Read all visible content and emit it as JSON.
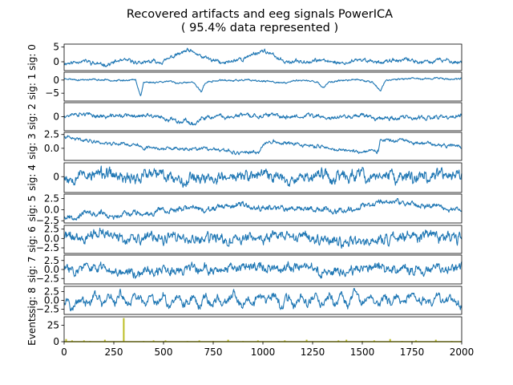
{
  "chart_data": {
    "type": "line",
    "title": "Recovered artifacts and eeg signals PowerICA",
    "subtitle": "( 95.4% data represented )",
    "xlim": [
      0,
      2000
    ],
    "x_ticks": [
      "0",
      "250",
      "500",
      "750",
      "1000",
      "1250",
      "1500",
      "1750",
      "2000"
    ],
    "x_tick_values": [
      0,
      250,
      500,
      750,
      1000,
      1250,
      1500,
      1750,
      2000
    ],
    "line_color": "#1f77b4",
    "events_color": "#bcbd22",
    "grid": false,
    "panels": [
      {
        "ylabel": "sig: 0",
        "ylim": [
          -3,
          6
        ],
        "ticks": [
          "0",
          "5"
        ],
        "tick_values": [
          0,
          5
        ],
        "points": [
          [
            0,
            -0.5
          ],
          [
            100,
            0.5
          ],
          [
            200,
            -1
          ],
          [
            300,
            0.5
          ],
          [
            400,
            -0.5
          ],
          [
            500,
            0.5
          ],
          [
            560,
            2
          ],
          [
            620,
            3.5
          ],
          [
            680,
            2
          ],
          [
            740,
            0.5
          ],
          [
            800,
            -0.5
          ],
          [
            900,
            1
          ],
          [
            950,
            2.5
          ],
          [
            1000,
            4
          ],
          [
            1050,
            2
          ],
          [
            1100,
            0.5
          ],
          [
            1200,
            0
          ],
          [
            1300,
            0.5
          ],
          [
            1400,
            -0.5
          ],
          [
            1500,
            0.5
          ],
          [
            1600,
            0
          ],
          [
            1700,
            0.5
          ],
          [
            1800,
            0
          ],
          [
            1900,
            0.5
          ],
          [
            2000,
            0
          ]
        ],
        "noise": 1.0,
        "seed": 11
      },
      {
        "ylabel": "sig: 1",
        "ylim": [
          -8,
          3
        ],
        "ticks": [
          "0",
          "−5"
        ],
        "tick_values": [
          0,
          -5
        ],
        "points": [
          [
            0,
            0.5
          ],
          [
            100,
            0
          ],
          [
            200,
            0
          ],
          [
            300,
            0
          ],
          [
            360,
            0
          ],
          [
            385,
            -6
          ],
          [
            400,
            -1
          ],
          [
            500,
            -0.5
          ],
          [
            600,
            -1
          ],
          [
            650,
            -1
          ],
          [
            690,
            -4.5
          ],
          [
            710,
            -1
          ],
          [
            800,
            0
          ],
          [
            900,
            0
          ],
          [
            1000,
            -0.5
          ],
          [
            1100,
            -1
          ],
          [
            1200,
            0
          ],
          [
            1280,
            -1
          ],
          [
            1300,
            -3
          ],
          [
            1330,
            -1
          ],
          [
            1400,
            0
          ],
          [
            1500,
            0
          ],
          [
            1550,
            -0.5
          ],
          [
            1590,
            -4
          ],
          [
            1620,
            0
          ],
          [
            1700,
            0.5
          ],
          [
            1800,
            0.5
          ],
          [
            1900,
            0.5
          ],
          [
            2000,
            0.5
          ]
        ],
        "noise": 0.5,
        "seed": 23
      },
      {
        "ylabel": "sig: 2",
        "ylim": [
          -4,
          4
        ],
        "ticks": [
          "0"
        ],
        "tick_values": [
          0
        ],
        "points": [
          [
            0,
            0.5
          ],
          [
            100,
            0.5
          ],
          [
            200,
            0
          ],
          [
            300,
            0.5
          ],
          [
            400,
            0
          ],
          [
            500,
            -0.5
          ],
          [
            600,
            -1
          ],
          [
            650,
            -2
          ],
          [
            700,
            -1
          ],
          [
            800,
            0
          ],
          [
            900,
            0.5
          ],
          [
            1000,
            0
          ],
          [
            1100,
            0
          ],
          [
            1200,
            0.5
          ],
          [
            1300,
            0
          ],
          [
            1400,
            0
          ],
          [
            1500,
            0.5
          ],
          [
            1600,
            0
          ],
          [
            1700,
            0
          ],
          [
            1800,
            -0.5
          ],
          [
            1900,
            0
          ],
          [
            2000,
            0
          ]
        ],
        "noise": 0.9,
        "seed": 37
      },
      {
        "ylabel": "sig: 3",
        "ylim": [
          -2.2,
          2.9
        ],
        "ticks": [
          "2.5",
          "0.0"
        ],
        "tick_values": [
          2.5,
          0
        ],
        "points": [
          [
            0,
            2
          ],
          [
            100,
            1.5
          ],
          [
            200,
            1
          ],
          [
            300,
            0.8
          ],
          [
            400,
            0.2
          ],
          [
            500,
            0
          ],
          [
            600,
            -0.2
          ],
          [
            700,
            0
          ],
          [
            800,
            -0.5
          ],
          [
            900,
            -0.7
          ],
          [
            980,
            -1
          ],
          [
            1000,
            0.8
          ],
          [
            1050,
            1.5
          ],
          [
            1100,
            1
          ],
          [
            1200,
            0.5
          ],
          [
            1300,
            0.2
          ],
          [
            1400,
            -0.3
          ],
          [
            1500,
            -0.6
          ],
          [
            1580,
            -0.6
          ],
          [
            1590,
            1.5
          ],
          [
            1700,
            1.3
          ],
          [
            1800,
            1
          ],
          [
            1900,
            0.6
          ],
          [
            2000,
            0.3
          ]
        ],
        "noise": 0.45,
        "seed": 41
      },
      {
        "ylabel": "sig: 4",
        "ylim": [
          -4,
          3.5
        ],
        "ticks": [
          "0"
        ],
        "tick_values": [
          0
        ],
        "points": [
          [
            0,
            0.5
          ],
          [
            200,
            0.5
          ],
          [
            400,
            0
          ],
          [
            600,
            0
          ],
          [
            800,
            0
          ],
          [
            1000,
            0
          ],
          [
            1200,
            0
          ],
          [
            1400,
            0
          ],
          [
            1600,
            0
          ],
          [
            1800,
            0
          ],
          [
            2000,
            0
          ]
        ],
        "noise": 2.2,
        "seed": 53
      },
      {
        "ylabel": "sig: 5",
        "ylim": [
          -3,
          3.5
        ],
        "ticks": [
          "2.5",
          "0.0",
          "−2.5"
        ],
        "tick_values": [
          2.5,
          0,
          -2.5
        ],
        "points": [
          [
            0,
            -1.5
          ],
          [
            100,
            -1
          ],
          [
            200,
            -1.2
          ],
          [
            280,
            -1.8
          ],
          [
            300,
            -0.8
          ],
          [
            400,
            -0.5
          ],
          [
            500,
            0
          ],
          [
            600,
            0.3
          ],
          [
            700,
            -0.2
          ],
          [
            800,
            0.3
          ],
          [
            900,
            0.8
          ],
          [
            1000,
            1
          ],
          [
            1100,
            0.3
          ],
          [
            1200,
            0.5
          ],
          [
            1300,
            0
          ],
          [
            1400,
            0
          ],
          [
            1500,
            0.8
          ],
          [
            1550,
            1
          ],
          [
            1600,
            2
          ],
          [
            1700,
            1.5
          ],
          [
            1800,
            1
          ],
          [
            1900,
            0.5
          ],
          [
            2000,
            0
          ]
        ],
        "noise": 0.9,
        "seed": 67
      },
      {
        "ylabel": "sig: 6",
        "ylim": [
          -4,
          3.5
        ],
        "ticks": [
          "2.5",
          "0.0",
          "−2.5"
        ],
        "tick_values": [
          2.5,
          0,
          -2.5
        ],
        "points": [
          [
            0,
            0.5
          ],
          [
            200,
            1
          ],
          [
            400,
            0
          ],
          [
            600,
            0
          ],
          [
            800,
            0
          ],
          [
            1000,
            0
          ],
          [
            1200,
            0
          ],
          [
            1400,
            0
          ],
          [
            1600,
            0.5
          ],
          [
            1800,
            0
          ],
          [
            2000,
            0
          ]
        ],
        "noise": 2.0,
        "seed": 71
      },
      {
        "ylabel": "sig: 7",
        "ylim": [
          -4,
          4
        ],
        "ticks": [
          "2.5",
          "0.0",
          "−2.5"
        ],
        "tick_values": [
          2.5,
          0,
          -2.5
        ],
        "points": [
          [
            0,
            0
          ],
          [
            200,
            0.5
          ],
          [
            400,
            -0.5
          ],
          [
            600,
            0
          ],
          [
            800,
            0
          ],
          [
            1000,
            0.5
          ],
          [
            1200,
            0
          ],
          [
            1400,
            -0.5
          ],
          [
            1600,
            0.8
          ],
          [
            1800,
            0
          ],
          [
            2000,
            0.5
          ]
        ],
        "noise": 1.9,
        "seed": 83
      },
      {
        "ylabel": "sig: 8",
        "ylim": [
          -4,
          4
        ],
        "ticks": [
          "2.5",
          "0.0",
          "−2.5"
        ],
        "tick_values": [
          2.5,
          0,
          -2.5
        ],
        "points": [
          [
            0,
            0
          ],
          [
            500,
            0
          ],
          [
            1000,
            0
          ],
          [
            1500,
            0
          ],
          [
            2000,
            0
          ]
        ],
        "noise": 1.8,
        "seed": 97,
        "wave": 1
      },
      {
        "ylabel": "Events",
        "ylim": [
          0,
          38
        ],
        "ticks": [
          "0",
          "25"
        ],
        "tick_values": [
          0,
          25
        ],
        "events": [
          [
            10,
            4
          ],
          [
            40,
            2
          ],
          [
            100,
            2
          ],
          [
            130,
            1
          ],
          [
            205,
            3
          ],
          [
            300,
            36
          ],
          [
            400,
            1
          ],
          [
            450,
            2
          ],
          [
            510,
            2
          ],
          [
            620,
            1
          ],
          [
            680,
            2
          ],
          [
            750,
            1
          ],
          [
            825,
            3
          ],
          [
            900,
            1
          ],
          [
            975,
            2
          ],
          [
            1080,
            1
          ],
          [
            1110,
            2
          ],
          [
            1220,
            3
          ],
          [
            1300,
            1
          ],
          [
            1380,
            2
          ],
          [
            1420,
            3
          ],
          [
            1500,
            1
          ],
          [
            1560,
            2
          ],
          [
            1640,
            4
          ],
          [
            1700,
            1
          ],
          [
            1770,
            2
          ],
          [
            1870,
            3
          ],
          [
            1950,
            1
          ]
        ]
      }
    ]
  }
}
